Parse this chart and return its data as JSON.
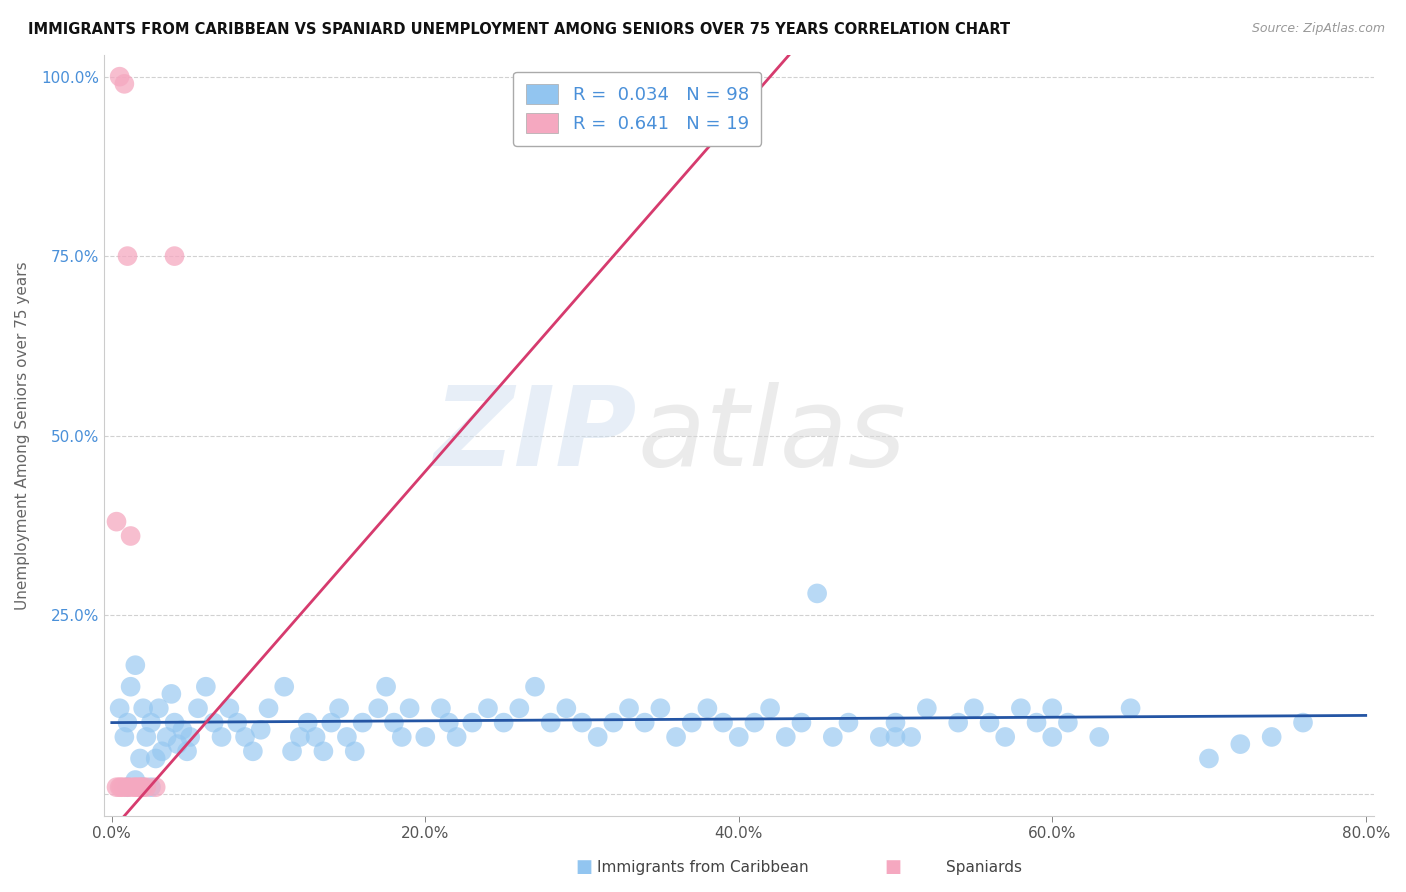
{
  "title": "IMMIGRANTS FROM CARIBBEAN VS SPANIARD UNEMPLOYMENT AMONG SENIORS OVER 75 YEARS CORRELATION CHART",
  "source": "Source: ZipAtlas.com",
  "ylabel": "Unemployment Among Seniors over 75 years",
  "legend_label1": "Immigrants from Caribbean",
  "legend_label2": "Spaniards",
  "R1": 0.034,
  "N1": 98,
  "R2": 0.641,
  "N2": 19,
  "xlim": [
    -0.005,
    0.805
  ],
  "ylim": [
    -0.03,
    1.03
  ],
  "xticks": [
    0.0,
    0.2,
    0.4,
    0.6,
    0.8
  ],
  "yticks": [
    0.0,
    0.25,
    0.5,
    0.75,
    1.0
  ],
  "xticklabels": [
    "0.0%",
    "20.0%",
    "40.0%",
    "60.0%",
    "80.0%"
  ],
  "yticklabels": [
    "",
    "25.0%",
    "50.0%",
    "75.0%",
    "100.0%"
  ],
  "color_blue": "#92c5f0",
  "color_pink": "#f5a8c0",
  "trendline_blue": "#2455a4",
  "trendline_pink": "#d63b6e",
  "watermark_zip": "ZIP",
  "watermark_atlas": "atlas",
  "background_color": "#ffffff",
  "blue_x": [
    0.005,
    0.008,
    0.01,
    0.012,
    0.015,
    0.018,
    0.02,
    0.022,
    0.025,
    0.028,
    0.03,
    0.032,
    0.035,
    0.038,
    0.04,
    0.042,
    0.045,
    0.048,
    0.05,
    0.055,
    0.06,
    0.065,
    0.07,
    0.075,
    0.08,
    0.085,
    0.09,
    0.095,
    0.1,
    0.11,
    0.115,
    0.12,
    0.125,
    0.13,
    0.135,
    0.14,
    0.145,
    0.15,
    0.155,
    0.16,
    0.17,
    0.175,
    0.18,
    0.185,
    0.19,
    0.2,
    0.21,
    0.215,
    0.22,
    0.23,
    0.24,
    0.25,
    0.26,
    0.27,
    0.28,
    0.29,
    0.3,
    0.31,
    0.32,
    0.33,
    0.34,
    0.35,
    0.36,
    0.37,
    0.38,
    0.39,
    0.4,
    0.41,
    0.42,
    0.43,
    0.44,
    0.45,
    0.46,
    0.47,
    0.49,
    0.5,
    0.51,
    0.52,
    0.54,
    0.55,
    0.56,
    0.57,
    0.58,
    0.59,
    0.6,
    0.61,
    0.63,
    0.65,
    0.7,
    0.72,
    0.74,
    0.76,
    0.01,
    0.015,
    0.02,
    0.025,
    0.5,
    0.6
  ],
  "blue_y": [
    0.12,
    0.08,
    0.1,
    0.15,
    0.18,
    0.05,
    0.12,
    0.08,
    0.1,
    0.05,
    0.12,
    0.06,
    0.08,
    0.14,
    0.1,
    0.07,
    0.09,
    0.06,
    0.08,
    0.12,
    0.15,
    0.1,
    0.08,
    0.12,
    0.1,
    0.08,
    0.06,
    0.09,
    0.12,
    0.15,
    0.06,
    0.08,
    0.1,
    0.08,
    0.06,
    0.1,
    0.12,
    0.08,
    0.06,
    0.1,
    0.12,
    0.15,
    0.1,
    0.08,
    0.12,
    0.08,
    0.12,
    0.1,
    0.08,
    0.1,
    0.12,
    0.1,
    0.12,
    0.15,
    0.1,
    0.12,
    0.1,
    0.08,
    0.1,
    0.12,
    0.1,
    0.12,
    0.08,
    0.1,
    0.12,
    0.1,
    0.08,
    0.1,
    0.12,
    0.08,
    0.1,
    0.28,
    0.08,
    0.1,
    0.08,
    0.1,
    0.08,
    0.12,
    0.1,
    0.12,
    0.1,
    0.08,
    0.12,
    0.1,
    0.12,
    0.1,
    0.08,
    0.12,
    0.05,
    0.07,
    0.08,
    0.1,
    0.01,
    0.02,
    0.01,
    0.01,
    0.08,
    0.08
  ],
  "pink_x": [
    0.003,
    0.005,
    0.006,
    0.008,
    0.01,
    0.012,
    0.015,
    0.018,
    0.02,
    0.022,
    0.003,
    0.005,
    0.008,
    0.01,
    0.012,
    0.015,
    0.018,
    0.028,
    0.04
  ],
  "pink_y": [
    0.01,
    0.01,
    0.01,
    0.01,
    0.01,
    0.01,
    0.01,
    0.01,
    0.01,
    0.01,
    0.38,
    1.0,
    0.99,
    0.75,
    0.36,
    0.01,
    0.01,
    0.01,
    0.75
  ],
  "pink_trendline_x0": 0.0,
  "pink_trendline_x1": 0.44,
  "pink_trendline_y0": -0.05,
  "pink_trendline_y1": 1.05,
  "blue_trendline_x0": 0.0,
  "blue_trendline_x1": 0.8,
  "blue_trendline_y0": 0.1,
  "blue_trendline_y1": 0.11
}
